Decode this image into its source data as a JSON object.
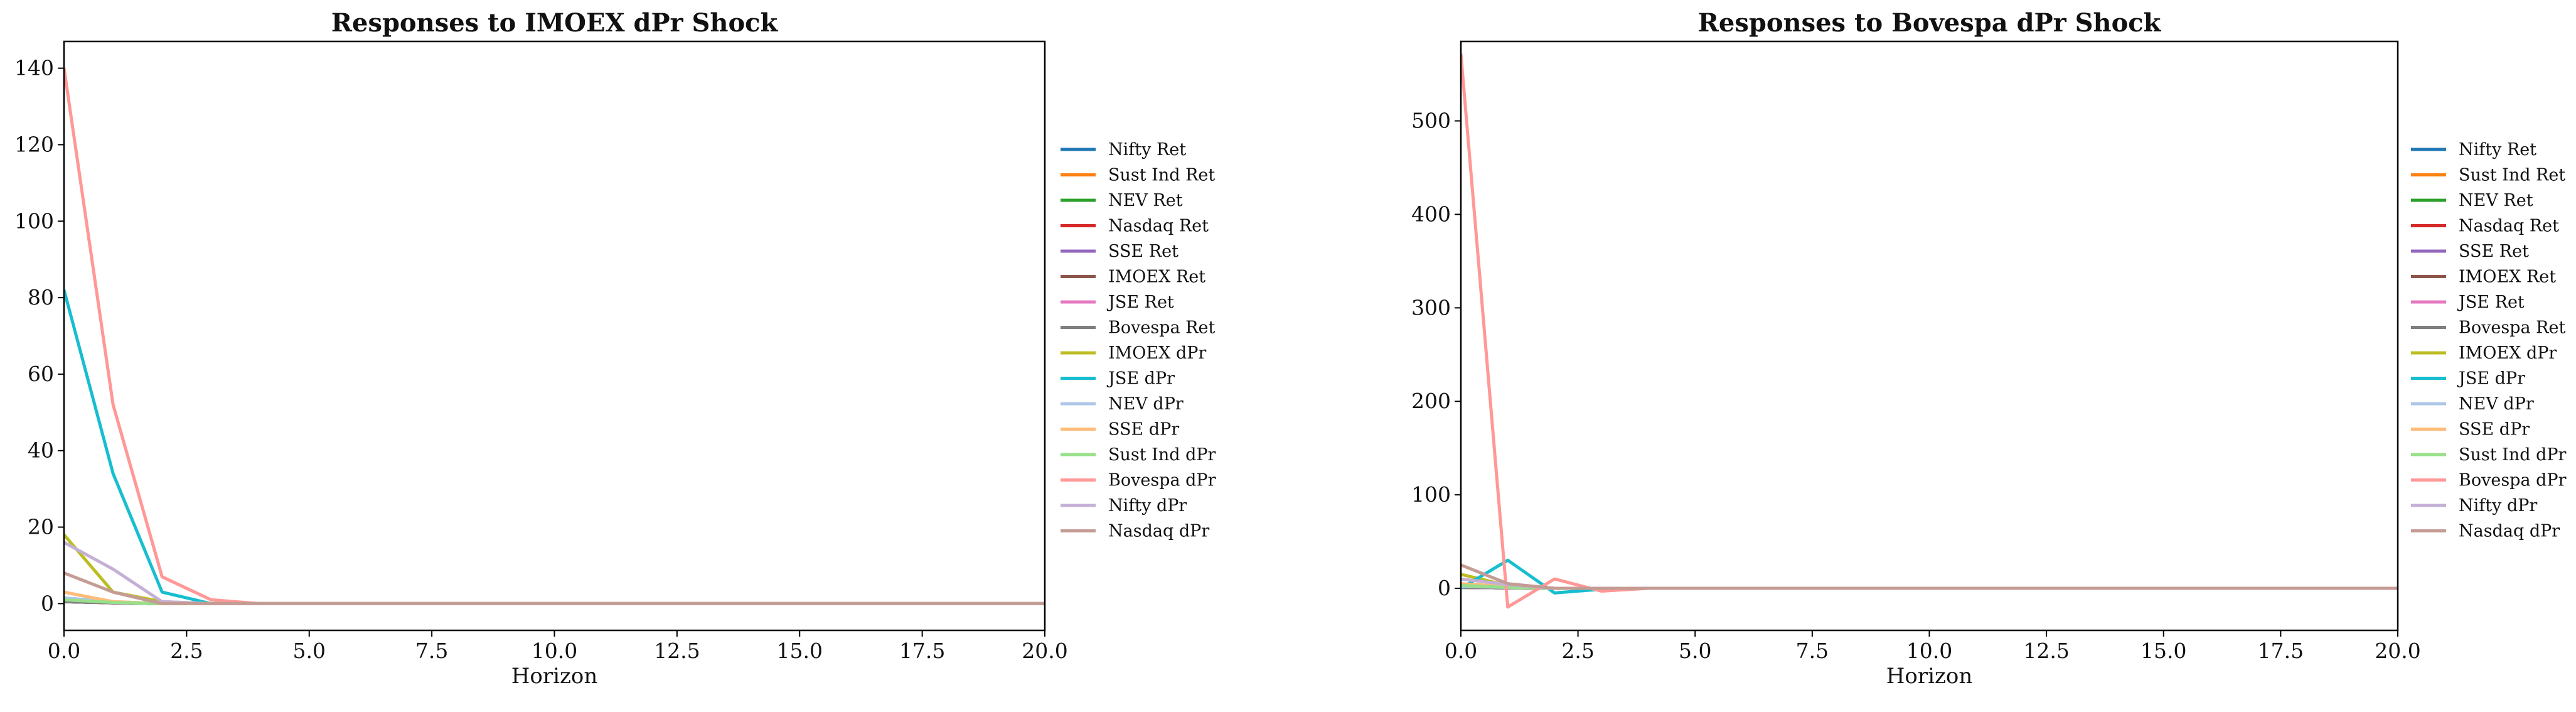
{
  "figure": {},
  "chart_data": [
    {
      "type": "line",
      "title": "Responses to IMOEX dPr Shock",
      "xlabel": "Horizon",
      "ylabel": "",
      "xlim": [
        0,
        20
      ],
      "ylim": [
        -7,
        147
      ],
      "x_ticks": [
        "0.0",
        "2.5",
        "5.0",
        "7.5",
        "10.0",
        "12.5",
        "15.0",
        "17.5",
        "20.0"
      ],
      "x_tick_values": [
        0,
        2.5,
        5,
        7.5,
        10,
        12.5,
        15,
        17.5,
        20
      ],
      "y_ticks": [
        "0",
        "20",
        "40",
        "60",
        "80",
        "100",
        "120",
        "140"
      ],
      "y_tick_values": [
        0,
        20,
        40,
        60,
        80,
        100,
        120,
        140
      ],
      "grid": false,
      "legend_position": "right",
      "x": [
        0,
        1,
        2,
        3,
        4,
        5,
        6,
        7,
        8,
        9,
        10,
        11,
        12,
        13,
        14,
        15,
        16,
        17,
        18,
        19,
        20
      ],
      "series": [
        {
          "name": "Nifty Ret",
          "color": "#1f77b4",
          "values": [
            0.5,
            0.2,
            0,
            0,
            0,
            0,
            0,
            0,
            0,
            0,
            0,
            0,
            0,
            0,
            0,
            0,
            0,
            0,
            0,
            0,
            0
          ]
        },
        {
          "name": "Sust Ind Ret",
          "color": "#ff7f0e",
          "values": [
            0.5,
            0.2,
            0,
            0,
            0,
            0,
            0,
            0,
            0,
            0,
            0,
            0,
            0,
            0,
            0,
            0,
            0,
            0,
            0,
            0,
            0
          ]
        },
        {
          "name": "NEV Ret",
          "color": "#2ca02c",
          "values": [
            0.5,
            0.2,
            0,
            0,
            0,
            0,
            0,
            0,
            0,
            0,
            0,
            0,
            0,
            0,
            0,
            0,
            0,
            0,
            0,
            0,
            0
          ]
        },
        {
          "name": "Nasdaq Ret",
          "color": "#d62728",
          "values": [
            0.5,
            0.2,
            0,
            0,
            0,
            0,
            0,
            0,
            0,
            0,
            0,
            0,
            0,
            0,
            0,
            0,
            0,
            0,
            0,
            0,
            0
          ]
        },
        {
          "name": "SSE Ret",
          "color": "#9467bd",
          "values": [
            0.5,
            0.2,
            0,
            0,
            0,
            0,
            0,
            0,
            0,
            0,
            0,
            0,
            0,
            0,
            0,
            0,
            0,
            0,
            0,
            0,
            0
          ]
        },
        {
          "name": "IMOEX Ret",
          "color": "#8c564b",
          "values": [
            0.5,
            0.2,
            0,
            0,
            0,
            0,
            0,
            0,
            0,
            0,
            0,
            0,
            0,
            0,
            0,
            0,
            0,
            0,
            0,
            0,
            0
          ]
        },
        {
          "name": "JSE Ret",
          "color": "#e377c2",
          "values": [
            0.5,
            0.2,
            0,
            0,
            0,
            0,
            0,
            0,
            0,
            0,
            0,
            0,
            0,
            0,
            0,
            0,
            0,
            0,
            0,
            0,
            0
          ]
        },
        {
          "name": "Bovespa Ret",
          "color": "#7f7f7f",
          "values": [
            0.5,
            0.2,
            0,
            0,
            0,
            0,
            0,
            0,
            0,
            0,
            0,
            0,
            0,
            0,
            0,
            0,
            0,
            0,
            0,
            0,
            0
          ]
        },
        {
          "name": "IMOEX dPr",
          "color": "#bcbd22",
          "values": [
            18,
            3,
            0.5,
            0,
            0,
            0,
            0,
            0,
            0,
            0,
            0,
            0,
            0,
            0,
            0,
            0,
            0,
            0,
            0,
            0,
            0
          ]
        },
        {
          "name": "JSE dPr",
          "color": "#17becf",
          "values": [
            82,
            34,
            3,
            0,
            0,
            0,
            0,
            0,
            0,
            0,
            0,
            0,
            0,
            0,
            0,
            0,
            0,
            0,
            0,
            0,
            0
          ]
        },
        {
          "name": "NEV dPr",
          "color": "#aec7e8",
          "values": [
            1.5,
            0.5,
            0,
            0,
            0,
            0,
            0,
            0,
            0,
            0,
            0,
            0,
            0,
            0,
            0,
            0,
            0,
            0,
            0,
            0,
            0
          ]
        },
        {
          "name": "SSE dPr",
          "color": "#ffbb78",
          "values": [
            3,
            0.5,
            0,
            0,
            0,
            0,
            0,
            0,
            0,
            0,
            0,
            0,
            0,
            0,
            0,
            0,
            0,
            0,
            0,
            0,
            0
          ]
        },
        {
          "name": "Sust Ind dPr",
          "color": "#98df8a",
          "values": [
            1,
            0.3,
            0,
            0,
            0,
            0,
            0,
            0,
            0,
            0,
            0,
            0,
            0,
            0,
            0,
            0,
            0,
            0,
            0,
            0,
            0
          ]
        },
        {
          "name": "Bovespa dPr",
          "color": "#ff9896",
          "values": [
            140,
            52,
            7,
            1,
            0,
            0,
            0,
            0,
            0,
            0,
            0,
            0,
            0,
            0,
            0,
            0,
            0,
            0,
            0,
            0,
            0
          ]
        },
        {
          "name": "Nifty dPr",
          "color": "#c5b0d5",
          "values": [
            16,
            9,
            0.5,
            0,
            0,
            0,
            0,
            0,
            0,
            0,
            0,
            0,
            0,
            0,
            0,
            0,
            0,
            0,
            0,
            0,
            0
          ]
        },
        {
          "name": "Nasdaq dPr",
          "color": "#c49c94",
          "values": [
            8,
            3,
            0,
            0,
            0,
            0,
            0,
            0,
            0,
            0,
            0,
            0,
            0,
            0,
            0,
            0,
            0,
            0,
            0,
            0,
            0
          ]
        }
      ]
    },
    {
      "type": "line",
      "title": "Responses to Bovespa dPr Shock",
      "xlabel": "Horizon",
      "ylabel": "",
      "xlim": [
        0,
        20
      ],
      "ylim": [
        -45,
        585
      ],
      "x_ticks": [
        "0.0",
        "2.5",
        "5.0",
        "7.5",
        "10.0",
        "12.5",
        "15.0",
        "17.5",
        "20.0"
      ],
      "x_tick_values": [
        0,
        2.5,
        5,
        7.5,
        10,
        12.5,
        15,
        17.5,
        20
      ],
      "y_ticks": [
        "0",
        "100",
        "200",
        "300",
        "400",
        "500"
      ],
      "y_tick_values": [
        0,
        100,
        200,
        300,
        400,
        500
      ],
      "grid": false,
      "legend_position": "right",
      "x": [
        0,
        1,
        2,
        3,
        4,
        5,
        6,
        7,
        8,
        9,
        10,
        11,
        12,
        13,
        14,
        15,
        16,
        17,
        18,
        19,
        20
      ],
      "series": [
        {
          "name": "Nifty Ret",
          "color": "#1f77b4",
          "values": [
            1,
            0.5,
            0,
            0,
            0,
            0,
            0,
            0,
            0,
            0,
            0,
            0,
            0,
            0,
            0,
            0,
            0,
            0,
            0,
            0,
            0
          ]
        },
        {
          "name": "Sust Ind Ret",
          "color": "#ff7f0e",
          "values": [
            1,
            0.5,
            0,
            0,
            0,
            0,
            0,
            0,
            0,
            0,
            0,
            0,
            0,
            0,
            0,
            0,
            0,
            0,
            0,
            0,
            0
          ]
        },
        {
          "name": "NEV Ret",
          "color": "#2ca02c",
          "values": [
            1,
            0.5,
            0,
            0,
            0,
            0,
            0,
            0,
            0,
            0,
            0,
            0,
            0,
            0,
            0,
            0,
            0,
            0,
            0,
            0,
            0
          ]
        },
        {
          "name": "Nasdaq Ret",
          "color": "#d62728",
          "values": [
            1,
            0.5,
            0,
            0,
            0,
            0,
            0,
            0,
            0,
            0,
            0,
            0,
            0,
            0,
            0,
            0,
            0,
            0,
            0,
            0,
            0
          ]
        },
        {
          "name": "SSE Ret",
          "color": "#9467bd",
          "values": [
            1,
            0.5,
            0,
            0,
            0,
            0,
            0,
            0,
            0,
            0,
            0,
            0,
            0,
            0,
            0,
            0,
            0,
            0,
            0,
            0,
            0
          ]
        },
        {
          "name": "IMOEX Ret",
          "color": "#8c564b",
          "values": [
            1,
            0.5,
            0,
            0,
            0,
            0,
            0,
            0,
            0,
            0,
            0,
            0,
            0,
            0,
            0,
            0,
            0,
            0,
            0,
            0,
            0
          ]
        },
        {
          "name": "JSE Ret",
          "color": "#e377c2",
          "values": [
            1,
            0.5,
            0,
            0,
            0,
            0,
            0,
            0,
            0,
            0,
            0,
            0,
            0,
            0,
            0,
            0,
            0,
            0,
            0,
            0,
            0
          ]
        },
        {
          "name": "Bovespa Ret",
          "color": "#7f7f7f",
          "values": [
            1,
            0.5,
            0,
            0,
            0,
            0,
            0,
            0,
            0,
            0,
            0,
            0,
            0,
            0,
            0,
            0,
            0,
            0,
            0,
            0,
            0
          ]
        },
        {
          "name": "IMOEX dPr",
          "color": "#bcbd22",
          "values": [
            15,
            3,
            0,
            0,
            0,
            0,
            0,
            0,
            0,
            0,
            0,
            0,
            0,
            0,
            0,
            0,
            0,
            0,
            0,
            0,
            0
          ]
        },
        {
          "name": "JSE dPr",
          "color": "#17becf",
          "values": [
            0,
            30,
            -5,
            -1,
            0,
            0,
            0,
            0,
            0,
            0,
            0,
            0,
            0,
            0,
            0,
            0,
            0,
            0,
            0,
            0,
            0
          ]
        },
        {
          "name": "NEV dPr",
          "color": "#aec7e8",
          "values": [
            2,
            1,
            0,
            0,
            0,
            0,
            0,
            0,
            0,
            0,
            0,
            0,
            0,
            0,
            0,
            0,
            0,
            0,
            0,
            0,
            0
          ]
        },
        {
          "name": "SSE dPr",
          "color": "#ffbb78",
          "values": [
            5,
            2,
            0,
            0,
            0,
            0,
            0,
            0,
            0,
            0,
            0,
            0,
            0,
            0,
            0,
            0,
            0,
            0,
            0,
            0,
            0
          ]
        },
        {
          "name": "Sust Ind dPr",
          "color": "#98df8a",
          "values": [
            3,
            1,
            0,
            0,
            0,
            0,
            0,
            0,
            0,
            0,
            0,
            0,
            0,
            0,
            0,
            0,
            0,
            0,
            0,
            0,
            0
          ]
        },
        {
          "name": "Bovespa dPr",
          "color": "#ff9896",
          "values": [
            572,
            -20,
            10,
            -3,
            0,
            0,
            0,
            0,
            0,
            0,
            0,
            0,
            0,
            0,
            0,
            0,
            0,
            0,
            0,
            0,
            0
          ]
        },
        {
          "name": "Nifty dPr",
          "color": "#c5b0d5",
          "values": [
            10,
            4,
            0,
            0,
            0,
            0,
            0,
            0,
            0,
            0,
            0,
            0,
            0,
            0,
            0,
            0,
            0,
            0,
            0,
            0,
            0
          ]
        },
        {
          "name": "Nasdaq dPr",
          "color": "#c49c94",
          "values": [
            25,
            5,
            0,
            0,
            0,
            0,
            0,
            0,
            0,
            0,
            0,
            0,
            0,
            0,
            0,
            0,
            0,
            0,
            0,
            0,
            0
          ]
        }
      ]
    }
  ]
}
